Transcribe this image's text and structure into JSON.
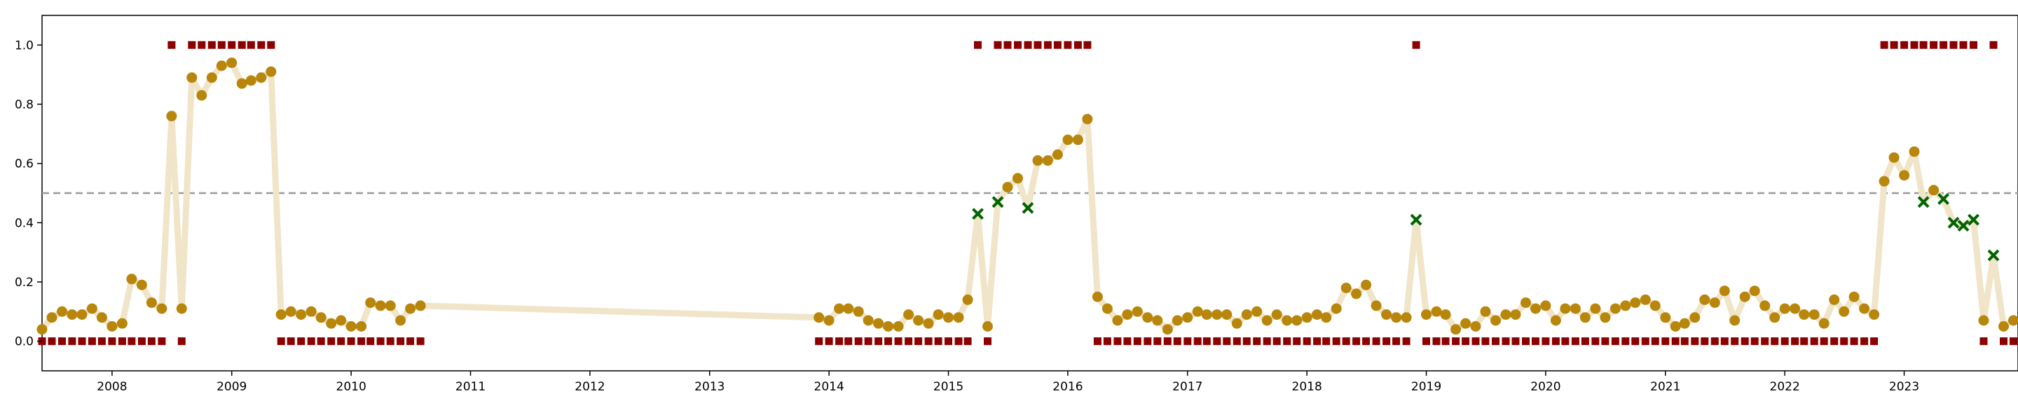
{
  "chart_data": {
    "type": "line",
    "title": "",
    "xlabel": "",
    "ylabel": "",
    "xlim": [
      "2007-06-01",
      "2023-12-15"
    ],
    "ylim": [
      -0.1,
      1.1
    ],
    "x_tick_labels": [
      "2008",
      "2009",
      "2010",
      "2011",
      "2012",
      "2013",
      "2014",
      "2015",
      "2016",
      "2017",
      "2018",
      "2019",
      "2020",
      "2021",
      "2022",
      "2023"
    ],
    "y_tick_labels": [
      "0.0",
      "0.2",
      "0.4",
      "0.6",
      "0.8",
      "1.0"
    ],
    "threshold": 0.5,
    "grid": false,
    "legend": "none",
    "colors": {
      "line": "#f0e5c8",
      "probability_marker": "#b8860b",
      "label_marker": "#8b0000",
      "misclassified_marker": "#006400",
      "threshold_line": "#999999"
    },
    "series": [
      {
        "x": [
          "2007-06",
          "2007-07",
          "2007-08",
          "2007-09",
          "2007-10",
          "2007-11",
          "2007-12",
          "2008-01",
          "2008-02",
          "2008-03",
          "2008-04",
          "2008-05",
          "2008-06",
          "2008-07",
          "2008-08",
          "2008-09",
          "2008-10",
          "2008-11",
          "2008-12",
          "2009-01",
          "2009-02",
          "2009-03",
          "2009-04",
          "2009-05",
          "2009-06",
          "2009-07",
          "2009-08",
          "2009-09",
          "2009-10",
          "2009-11",
          "2009-12",
          "2010-01",
          "2010-02",
          "2010-03",
          "2010-04",
          "2010-05",
          "2010-06",
          "2010-07",
          "2010-08",
          "2013-12",
          "2014-01",
          "2014-02",
          "2014-03",
          "2014-04",
          "2014-05",
          "2014-06",
          "2014-07",
          "2014-08",
          "2014-09",
          "2014-10",
          "2014-11",
          "2014-12",
          "2015-01",
          "2015-02",
          "2015-03",
          "2015-04",
          "2015-05",
          "2015-06",
          "2015-07",
          "2015-08",
          "2015-09",
          "2015-10",
          "2015-11",
          "2015-12",
          "2016-01",
          "2016-02",
          "2016-03",
          "2016-04",
          "2016-05",
          "2016-06",
          "2016-07",
          "2016-08",
          "2016-09",
          "2016-10",
          "2016-11",
          "2016-12",
          "2017-01",
          "2017-02",
          "2017-03",
          "2017-04",
          "2017-05",
          "2017-06",
          "2017-07",
          "2017-08",
          "2017-09",
          "2017-10",
          "2017-11",
          "2017-12",
          "2018-01",
          "2018-02",
          "2018-03",
          "2018-04",
          "2018-05",
          "2018-06",
          "2018-07",
          "2018-08",
          "2018-09",
          "2018-10",
          "2018-11",
          "2018-12",
          "2019-01",
          "2019-02",
          "2019-03",
          "2019-04",
          "2019-05",
          "2019-06",
          "2019-07",
          "2019-08",
          "2019-09",
          "2019-10",
          "2019-11",
          "2019-12",
          "2020-01",
          "2020-02",
          "2020-03",
          "2020-04",
          "2020-05",
          "2020-06",
          "2020-07",
          "2020-08",
          "2020-09",
          "2020-10",
          "2020-11",
          "2020-12",
          "2021-01",
          "2021-02",
          "2021-03",
          "2021-04",
          "2021-05",
          "2021-06",
          "2021-07",
          "2021-08",
          "2021-09",
          "2021-10",
          "2021-11",
          "2021-12",
          "2022-01",
          "2022-02",
          "2022-03",
          "2022-04",
          "2022-05",
          "2022-06",
          "2022-07",
          "2022-08",
          "2022-09",
          "2022-10",
          "2022-11",
          "2022-12",
          "2023-01",
          "2023-02",
          "2023-03",
          "2023-04",
          "2023-05",
          "2023-06",
          "2023-07",
          "2023-08",
          "2023-09",
          "2023-10",
          "2023-11",
          "2023-12"
        ],
        "probability": [
          0.04,
          0.08,
          0.1,
          0.09,
          0.09,
          0.11,
          0.08,
          0.05,
          0.06,
          0.21,
          0.19,
          0.13,
          0.11,
          0.76,
          0.11,
          0.89,
          0.83,
          0.89,
          0.93,
          0.94,
          0.87,
          0.88,
          0.89,
          0.91,
          0.09,
          0.1,
          0.09,
          0.1,
          0.08,
          0.06,
          0.07,
          0.05,
          0.05,
          0.13,
          0.12,
          0.12,
          0.07,
          0.11,
          0.12,
          0.08,
          0.07,
          0.11,
          0.11,
          0.1,
          0.07,
          0.06,
          0.05,
          0.05,
          0.09,
          0.07,
          0.06,
          0.09,
          0.08,
          0.08,
          0.14,
          0.43,
          0.05,
          0.47,
          0.52,
          0.55,
          0.45,
          0.61,
          0.61,
          0.63,
          0.68,
          0.68,
          0.75,
          0.15,
          0.11,
          0.07,
          0.09,
          0.1,
          0.08,
          0.07,
          0.04,
          0.07,
          0.08,
          0.1,
          0.09,
          0.09,
          0.09,
          0.06,
          0.09,
          0.1,
          0.07,
          0.09,
          0.07,
          0.07,
          0.08,
          0.09,
          0.08,
          0.11,
          0.18,
          0.16,
          0.19,
          0.12,
          0.09,
          0.08,
          0.08,
          0.41,
          0.09,
          0.1,
          0.09,
          0.04,
          0.06,
          0.05,
          0.1,
          0.07,
          0.09,
          0.09,
          0.13,
          0.11,
          0.12,
          0.07,
          0.11,
          0.11,
          0.08,
          0.11,
          0.08,
          0.11,
          0.12,
          0.13,
          0.14,
          0.12,
          0.08,
          0.05,
          0.06,
          0.08,
          0.14,
          0.13,
          0.17,
          0.07,
          0.15,
          0.17,
          0.12,
          0.08,
          0.11,
          0.11,
          0.09,
          0.09,
          0.06,
          0.14,
          0.1,
          0.15,
          0.11,
          0.09,
          0.54,
          0.62,
          0.56,
          0.64,
          0.47,
          0.51,
          0.48,
          0.4,
          0.39,
          0.41,
          0.07,
          0.29,
          0.05,
          0.07
        ],
        "label": [
          0,
          0,
          0,
          0,
          0,
          0,
          0,
          0,
          0,
          0,
          0,
          0,
          0,
          1,
          0,
          1,
          1,
          1,
          1,
          1,
          1,
          1,
          1,
          1,
          0,
          0,
          0,
          0,
          0,
          0,
          0,
          0,
          0,
          0,
          0,
          0,
          0,
          0,
          0,
          0,
          0,
          0,
          0,
          0,
          0,
          0,
          0,
          0,
          0,
          0,
          0,
          0,
          0,
          0,
          0,
          1,
          0,
          1,
          1,
          1,
          1,
          1,
          1,
          1,
          1,
          1,
          1,
          0,
          0,
          0,
          0,
          0,
          0,
          0,
          0,
          0,
          0,
          0,
          0,
          0,
          0,
          0,
          0,
          0,
          0,
          0,
          0,
          0,
          0,
          0,
          0,
          0,
          0,
          0,
          0,
          0,
          0,
          0,
          0,
          1,
          0,
          0,
          0,
          0,
          0,
          0,
          0,
          0,
          0,
          0,
          0,
          0,
          0,
          0,
          0,
          0,
          0,
          0,
          0,
          0,
          0,
          0,
          0,
          0,
          0,
          0,
          0,
          0,
          0,
          0,
          0,
          0,
          0,
          0,
          0,
          0,
          0,
          0,
          0,
          0,
          0,
          0,
          0,
          0,
          0,
          0,
          1,
          1,
          1,
          1,
          1,
          1,
          1,
          1,
          1,
          1,
          0,
          1,
          0,
          0
        ]
      }
    ]
  }
}
